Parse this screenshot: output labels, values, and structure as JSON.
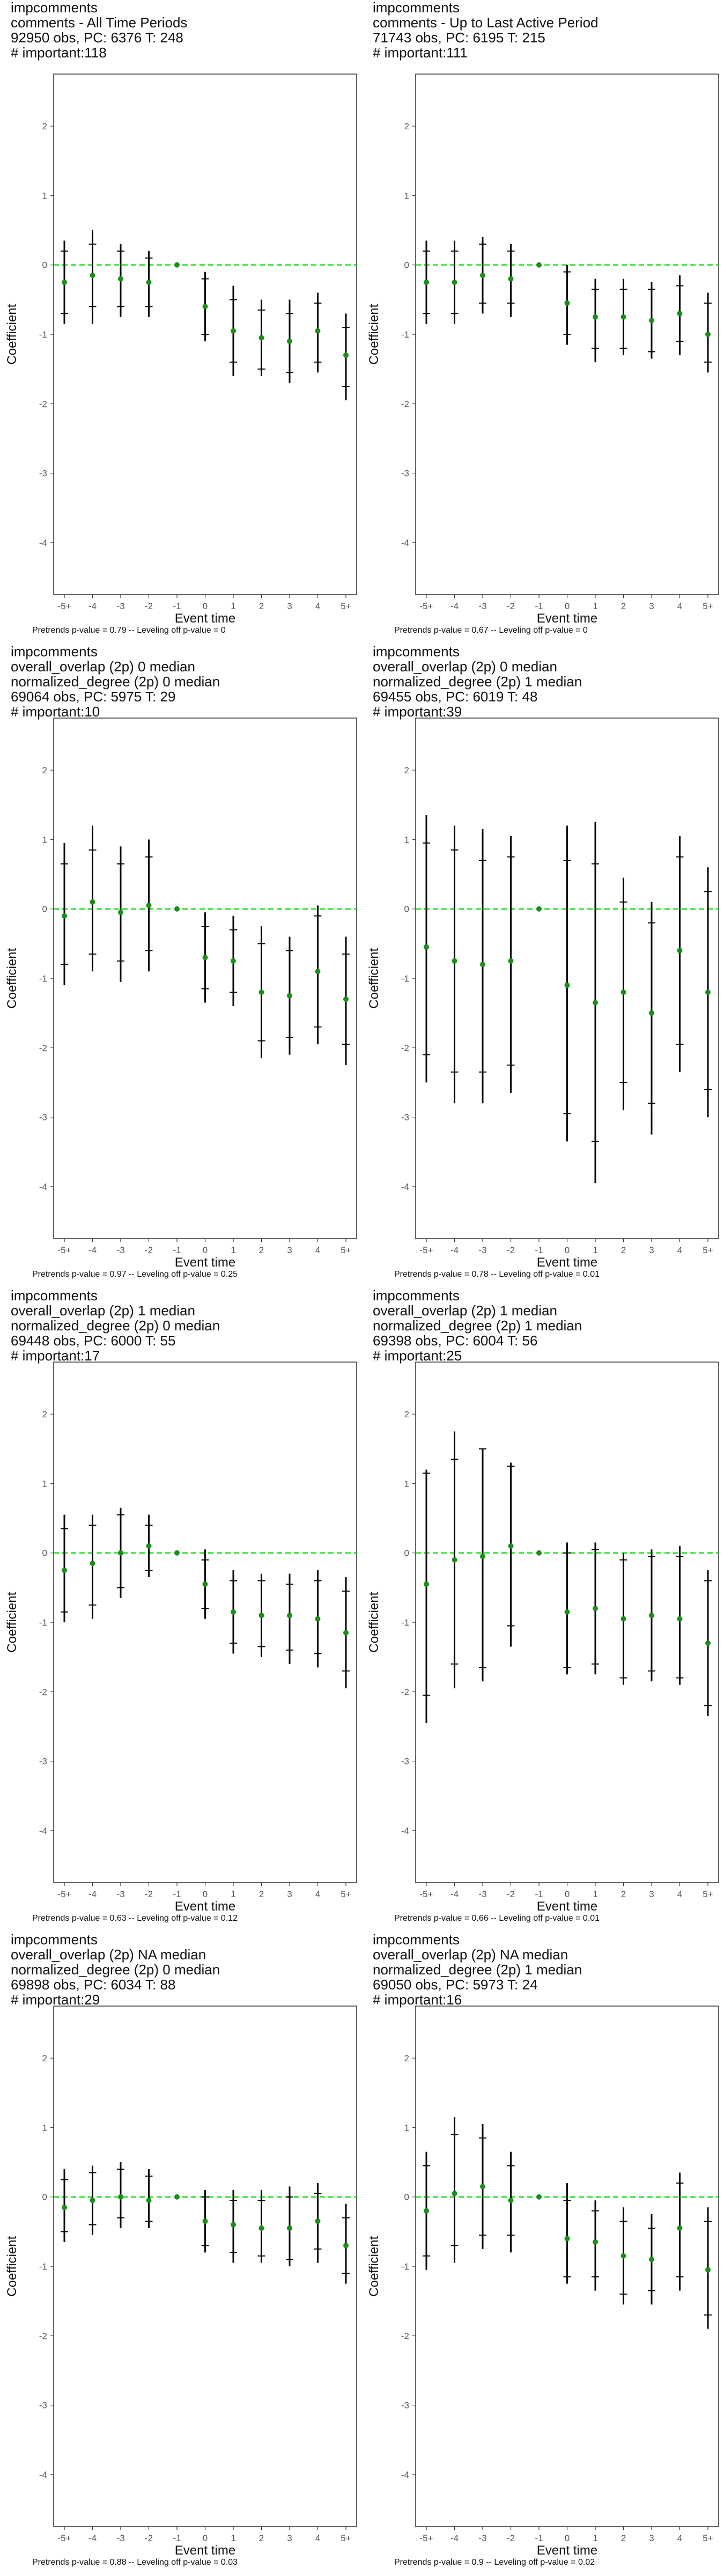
{
  "chart_data": [
    {
      "type": "scatter",
      "title": [
        "impcomments",
        "comments - All Time Periods",
        "92950 obs, PC: 6376 T: 248",
        "# important:118"
      ],
      "footer": "Pretrends p-value = 0.79 -- Leveling off p-value = 0",
      "xlabel": "Event time",
      "ylabel": "Coefficient",
      "categories": [
        "-5+",
        "-4",
        "-3",
        "-2",
        "-1",
        "0",
        "1",
        "2",
        "3",
        "4",
        "5+"
      ],
      "yticks": [
        2,
        1,
        0,
        -1,
        -2,
        -3,
        -4
      ],
      "ylim": [
        -4.75,
        2.75
      ],
      "values": [
        -0.25,
        -0.15,
        -0.2,
        -0.25,
        0,
        -0.6,
        -0.95,
        -1.05,
        -1.1,
        -0.95,
        -1.3
      ],
      "inner": [
        [
          -0.7,
          0.2
        ],
        [
          -0.6,
          0.3
        ],
        [
          -0.6,
          0.2
        ],
        [
          -0.6,
          0.1
        ],
        [
          0,
          0
        ],
        [
          -1.0,
          -0.2
        ],
        [
          -1.4,
          -0.5
        ],
        [
          -1.5,
          -0.65
        ],
        [
          -1.55,
          -0.7
        ],
        [
          -1.4,
          -0.55
        ],
        [
          -1.75,
          -0.9
        ]
      ],
      "outer": [
        [
          -0.85,
          0.35
        ],
        [
          -0.85,
          0.5
        ],
        [
          -0.75,
          0.3
        ],
        [
          -0.75,
          0.2
        ],
        [
          0,
          0
        ],
        [
          -1.1,
          -0.1
        ],
        [
          -1.6,
          -0.3
        ],
        [
          -1.6,
          -0.5
        ],
        [
          -1.7,
          -0.5
        ],
        [
          -1.55,
          -0.4
        ],
        [
          -1.95,
          -0.7
        ]
      ]
    },
    {
      "type": "scatter",
      "title": [
        "impcomments",
        "comments - Up to Last Active Period",
        "71743 obs, PC: 6195 T: 215",
        "# important:111"
      ],
      "footer": "Pretrends p-value = 0.67 -- Leveling off p-value = 0",
      "xlabel": "Event time",
      "ylabel": "Coefficient",
      "categories": [
        "-5+",
        "-4",
        "-3",
        "-2",
        "-1",
        "0",
        "1",
        "2",
        "3",
        "4",
        "5+"
      ],
      "yticks": [
        2,
        1,
        0,
        -1,
        -2,
        -3,
        -4
      ],
      "ylim": [
        -4.75,
        2.75
      ],
      "values": [
        -0.25,
        -0.25,
        -0.15,
        -0.2,
        0,
        -0.55,
        -0.75,
        -0.75,
        -0.8,
        -0.7,
        -1.0
      ],
      "inner": [
        [
          -0.7,
          0.2
        ],
        [
          -0.7,
          0.2
        ],
        [
          -0.55,
          0.3
        ],
        [
          -0.55,
          0.2
        ],
        [
          0,
          0
        ],
        [
          -1.0,
          -0.1
        ],
        [
          -1.2,
          -0.35
        ],
        [
          -1.2,
          -0.35
        ],
        [
          -1.25,
          -0.35
        ],
        [
          -1.1,
          -0.3
        ],
        [
          -1.4,
          -0.55
        ]
      ],
      "outer": [
        [
          -0.85,
          0.35
        ],
        [
          -0.85,
          0.35
        ],
        [
          -0.7,
          0.4
        ],
        [
          -0.75,
          0.3
        ],
        [
          0,
          0
        ],
        [
          -1.15,
          0.0
        ],
        [
          -1.4,
          -0.2
        ],
        [
          -1.3,
          -0.2
        ],
        [
          -1.35,
          -0.25
        ],
        [
          -1.3,
          -0.15
        ],
        [
          -1.55,
          -0.4
        ]
      ]
    },
    {
      "type": "scatter",
      "title": [
        "impcomments",
        "overall_overlap (2p) 0 median",
        "normalized_degree (2p) 0 median",
        "69064 obs, PC: 5975 T: 29",
        "# important:10"
      ],
      "footer": "Pretrends p-value = 0.97 -- Leveling off p-value = 0.25",
      "xlabel": "Event time",
      "ylabel": "Coefficient",
      "categories": [
        "-5+",
        "-4",
        "-3",
        "-2",
        "-1",
        "0",
        "1",
        "2",
        "3",
        "4",
        "5+"
      ],
      "yticks": [
        2,
        1,
        0,
        -1,
        -2,
        -3,
        -4
      ],
      "ylim": [
        -4.75,
        2.75
      ],
      "values": [
        -0.1,
        0.1,
        -0.05,
        0.05,
        0,
        -0.7,
        -0.75,
        -1.2,
        -1.25,
        -0.9,
        -1.3
      ],
      "inner": [
        [
          -0.8,
          0.65
        ],
        [
          -0.65,
          0.85
        ],
        [
          -0.75,
          0.65
        ],
        [
          -0.6,
          0.75
        ],
        [
          0,
          0
        ],
        [
          -1.15,
          -0.25
        ],
        [
          -1.2,
          -0.3
        ],
        [
          -1.9,
          -0.5
        ],
        [
          -1.85,
          -0.6
        ],
        [
          -1.7,
          -0.1
        ],
        [
          -1.95,
          -0.65
        ]
      ],
      "outer": [
        [
          -1.1,
          0.95
        ],
        [
          -0.9,
          1.2
        ],
        [
          -1.05,
          0.9
        ],
        [
          -0.9,
          1.0
        ],
        [
          0,
          0
        ],
        [
          -1.35,
          -0.05
        ],
        [
          -1.4,
          -0.1
        ],
        [
          -2.15,
          -0.25
        ],
        [
          -2.1,
          -0.4
        ],
        [
          -1.95,
          0.05
        ],
        [
          -2.25,
          -0.4
        ]
      ]
    },
    {
      "type": "scatter",
      "title": [
        "impcomments",
        "overall_overlap (2p) 0 median",
        "normalized_degree (2p) 1 median",
        "69455 obs, PC: 6019 T: 48",
        "# important:39"
      ],
      "footer": "Pretrends p-value = 0.78 -- Leveling off p-value = 0.01",
      "xlabel": "Event time",
      "ylabel": "Coefficient",
      "categories": [
        "-5+",
        "-4",
        "-3",
        "-2",
        "-1",
        "0",
        "1",
        "2",
        "3",
        "4",
        "5+"
      ],
      "yticks": [
        2,
        1,
        0,
        -1,
        -2,
        -3,
        -4
      ],
      "ylim": [
        -4.75,
        2.75
      ],
      "values": [
        -0.55,
        -0.75,
        -0.8,
        -0.75,
        0,
        -1.1,
        -1.35,
        -1.2,
        -1.5,
        -0.6,
        -1.2
      ],
      "inner": [
        [
          -2.1,
          0.95
        ],
        [
          -2.35,
          0.85
        ],
        [
          -2.35,
          0.7
        ],
        [
          -2.25,
          0.75
        ],
        [
          0,
          0
        ],
        [
          -2.95,
          0.7
        ],
        [
          -3.35,
          0.65
        ],
        [
          -2.5,
          0.1
        ],
        [
          -2.8,
          -0.2
        ],
        [
          -1.95,
          0.75
        ],
        [
          -2.6,
          0.25
        ]
      ],
      "outer": [
        [
          -2.5,
          1.35
        ],
        [
          -2.8,
          1.2
        ],
        [
          -2.8,
          1.15
        ],
        [
          -2.65,
          1.05
        ],
        [
          0,
          0
        ],
        [
          -3.35,
          1.2
        ],
        [
          -3.95,
          1.25
        ],
        [
          -2.9,
          0.45
        ],
        [
          -3.25,
          0.1
        ],
        [
          -2.35,
          1.05
        ],
        [
          -3.0,
          0.6
        ]
      ]
    },
    {
      "type": "scatter",
      "title": [
        "impcomments",
        "overall_overlap (2p) 1 median",
        "normalized_degree (2p) 0 median",
        "69448 obs, PC: 6000 T: 55",
        "# important:17"
      ],
      "footer": "Pretrends p-value = 0.63 -- Leveling off p-value = 0.12",
      "xlabel": "Event time",
      "ylabel": "Coefficient",
      "categories": [
        "-5+",
        "-4",
        "-3",
        "-2",
        "-1",
        "0",
        "1",
        "2",
        "3",
        "4",
        "5+"
      ],
      "yticks": [
        2,
        1,
        0,
        -1,
        -2,
        -3,
        -4
      ],
      "ylim": [
        -4.75,
        2.75
      ],
      "values": [
        -0.25,
        -0.15,
        0.0,
        0.1,
        0,
        -0.45,
        -0.85,
        -0.9,
        -0.9,
        -0.95,
        -1.15
      ],
      "inner": [
        [
          -0.85,
          0.35
        ],
        [
          -0.75,
          0.4
        ],
        [
          -0.5,
          0.55
        ],
        [
          -0.25,
          0.4
        ],
        [
          0,
          0
        ],
        [
          -0.8,
          -0.1
        ],
        [
          -1.3,
          -0.4
        ],
        [
          -1.35,
          -0.4
        ],
        [
          -1.4,
          -0.45
        ],
        [
          -1.45,
          -0.4
        ],
        [
          -1.7,
          -0.55
        ]
      ],
      "outer": [
        [
          -1.0,
          0.55
        ],
        [
          -0.95,
          0.55
        ],
        [
          -0.65,
          0.65
        ],
        [
          -0.35,
          0.55
        ],
        [
          0,
          0
        ],
        [
          -0.95,
          0.05
        ],
        [
          -1.45,
          -0.25
        ],
        [
          -1.5,
          -0.3
        ],
        [
          -1.6,
          -0.3
        ],
        [
          -1.65,
          -0.25
        ],
        [
          -1.95,
          -0.35
        ]
      ]
    },
    {
      "type": "scatter",
      "title": [
        "impcomments",
        "overall_overlap (2p) 1 median",
        "normalized_degree (2p) 1 median",
        "69398 obs, PC: 6004 T: 56",
        "# important:25"
      ],
      "footer": "Pretrends p-value = 0.66 -- Leveling off p-value = 0.01",
      "xlabel": "Event time",
      "ylabel": "Coefficient",
      "categories": [
        "-5+",
        "-4",
        "-3",
        "-2",
        "-1",
        "0",
        "1",
        "2",
        "3",
        "4",
        "5+"
      ],
      "yticks": [
        2,
        1,
        0,
        -1,
        -2,
        -3,
        -4
      ],
      "ylim": [
        -4.75,
        2.75
      ],
      "values": [
        -0.45,
        -0.1,
        -0.05,
        0.1,
        0,
        -0.85,
        -0.8,
        -0.95,
        -0.9,
        -0.95,
        -1.3
      ],
      "inner": [
        [
          -2.05,
          1.15
        ],
        [
          -1.6,
          1.35
        ],
        [
          -1.65,
          1.5
        ],
        [
          -1.05,
          1.25
        ],
        [
          0,
          0
        ],
        [
          -1.65,
          0.0
        ],
        [
          -1.6,
          0.05
        ],
        [
          -1.8,
          -0.1
        ],
        [
          -1.7,
          -0.05
        ],
        [
          -1.8,
          -0.05
        ],
        [
          -2.2,
          -0.4
        ]
      ],
      "outer": [
        [
          -2.45,
          1.2
        ],
        [
          -1.95,
          1.75
        ],
        [
          -1.85,
          1.5
        ],
        [
          -1.35,
          1.3
        ],
        [
          0,
          0
        ],
        [
          -1.75,
          0.15
        ],
        [
          -1.75,
          0.15
        ],
        [
          -1.9,
          0.0
        ],
        [
          -1.85,
          0.05
        ],
        [
          -1.9,
          0.1
        ],
        [
          -2.35,
          -0.25
        ]
      ]
    },
    {
      "type": "scatter",
      "title": [
        "impcomments",
        "overall_overlap (2p) NA median",
        "normalized_degree (2p) 0 median",
        "69898 obs, PC: 6034 T: 88",
        "# important:29"
      ],
      "footer": "Pretrends p-value = 0.88 -- Leveling off p-value = 0.03",
      "xlabel": "Event time",
      "ylabel": "Coefficient",
      "categories": [
        "-5+",
        "-4",
        "-3",
        "-2",
        "-1",
        "0",
        "1",
        "2",
        "3",
        "4",
        "5+"
      ],
      "yticks": [
        2,
        1,
        0,
        -1,
        -2,
        -3,
        -4
      ],
      "ylim": [
        -4.75,
        2.75
      ],
      "values": [
        -0.15,
        -0.05,
        0.0,
        -0.05,
        0,
        -0.35,
        -0.4,
        -0.45,
        -0.45,
        -0.35,
        -0.7
      ],
      "inner": [
        [
          -0.5,
          0.25
        ],
        [
          -0.4,
          0.35
        ],
        [
          -0.3,
          0.4
        ],
        [
          -0.35,
          0.3
        ],
        [
          0,
          0
        ],
        [
          -0.7,
          0.0
        ],
        [
          -0.8,
          -0.05
        ],
        [
          -0.85,
          -0.05
        ],
        [
          -0.9,
          0.0
        ],
        [
          -0.75,
          0.05
        ],
        [
          -1.1,
          -0.3
        ]
      ],
      "outer": [
        [
          -0.65,
          0.4
        ],
        [
          -0.55,
          0.45
        ],
        [
          -0.45,
          0.5
        ],
        [
          -0.45,
          0.4
        ],
        [
          0,
          0
        ],
        [
          -0.8,
          0.1
        ],
        [
          -0.95,
          0.1
        ],
        [
          -0.95,
          0.1
        ],
        [
          -1.0,
          0.15
        ],
        [
          -0.95,
          0.2
        ],
        [
          -1.25,
          -0.1
        ]
      ]
    },
    {
      "type": "scatter",
      "title": [
        "impcomments",
        "overall_overlap (2p) NA median",
        "normalized_degree (2p) 1 median",
        "69050 obs, PC: 5973 T: 24",
        "# important:16"
      ],
      "footer": "Pretrends p-value = 0.9 -- Leveling off p-value = 0.02",
      "xlabel": "Event time",
      "ylabel": "Coefficient",
      "categories": [
        "-5+",
        "-4",
        "-3",
        "-2",
        "-1",
        "0",
        "1",
        "2",
        "3",
        "4",
        "5+"
      ],
      "yticks": [
        2,
        1,
        0,
        -1,
        -2,
        -3,
        -4
      ],
      "ylim": [
        -4.75,
        2.75
      ],
      "values": [
        -0.2,
        0.05,
        0.15,
        -0.05,
        0,
        -0.6,
        -0.65,
        -0.85,
        -0.9,
        -0.45,
        -1.05
      ],
      "inner": [
        [
          -0.85,
          0.45
        ],
        [
          -0.7,
          0.9
        ],
        [
          -0.55,
          0.85
        ],
        [
          -0.55,
          0.45
        ],
        [
          0,
          0
        ],
        [
          -1.15,
          -0.05
        ],
        [
          -1.15,
          -0.2
        ],
        [
          -1.4,
          -0.35
        ],
        [
          -1.35,
          -0.45
        ],
        [
          -1.15,
          0.2
        ],
        [
          -1.7,
          -0.35
        ]
      ],
      "outer": [
        [
          -1.05,
          0.65
        ],
        [
          -0.95,
          1.15
        ],
        [
          -0.75,
          1.05
        ],
        [
          -0.8,
          0.65
        ],
        [
          0,
          0
        ],
        [
          -1.25,
          0.2
        ],
        [
          -1.35,
          -0.05
        ],
        [
          -1.55,
          -0.15
        ],
        [
          -1.55,
          -0.25
        ],
        [
          -1.35,
          0.35
        ],
        [
          -1.9,
          -0.15
        ]
      ]
    }
  ],
  "colors": {
    "point": "#1a8f1a",
    "zero_line": "#22dd22",
    "bar": "#000000",
    "frame": "#333333"
  }
}
